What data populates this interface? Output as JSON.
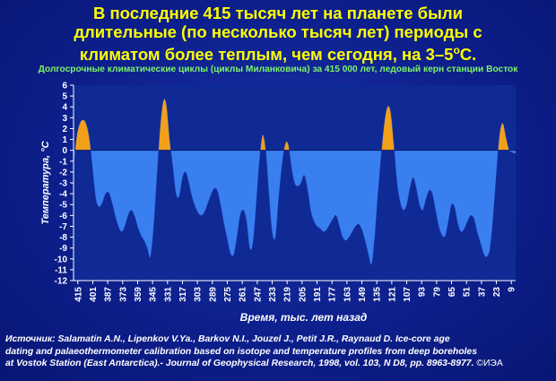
{
  "title": {
    "line1": "В последние 415 тысяч лет на планете были",
    "line2": "длительные (по несколько тысяч лет) периоды с",
    "line3_prefix": "климатом более теплым, чем сегодня, на 3–5",
    "line3_sup": "о",
    "line3_suffix": "С."
  },
  "subtitle": "Долгосрочные климатические циклы (циклы Миланковича) за 415 000 лет, ледовый керн станции Восток",
  "source": {
    "line1": "Источник: Salamatin A.N., Lipenkov V.Ya., Barkov N.I., Jouzel J., Petit J.R., Raynaud D. Ice-core age",
    "line2": "dating and palaeothermometer calibration based on isotope and temperature profiles from deep boreholes",
    "line3": "at Vostok  Station (East Antarctica).- Journal of Geophysical Research, 1998, vol. 103, N D8, pp. 8963-8977.",
    "copyright": "©ИЭА"
  },
  "colors": {
    "warm": "#f2a01a",
    "cold": "#3a7ff0",
    "plot_bg": "#0f2a94",
    "axis_text": "#ffffff",
    "grid": "#4a63c8"
  },
  "chart_data": {
    "type": "area",
    "xlabel": "Время, тыс. лет назад",
    "ylabel": "Температура, °С",
    "ylim": [
      -12,
      6
    ],
    "xlim": [
      419,
      5
    ],
    "y_ticks": [
      6,
      5,
      4,
      3,
      2,
      1,
      0,
      -1,
      -2,
      -3,
      -4,
      -5,
      -6,
      -7,
      -8,
      -9,
      -10,
      -11,
      -12
    ],
    "x_ticks": [
      415,
      401,
      387,
      373,
      359,
      345,
      331,
      317,
      303,
      289,
      275,
      261,
      247,
      233,
      219,
      205,
      191,
      177,
      163,
      149,
      135,
      121,
      107,
      93,
      79,
      65,
      51,
      37,
      23,
      9
    ],
    "baseline": 0,
    "grid": false,
    "legend": "none",
    "x": [
      419,
      416,
      413,
      410,
      407,
      404,
      401,
      398,
      395,
      392,
      389,
      386,
      383,
      380,
      377,
      374,
      371,
      368,
      365,
      362,
      359,
      356,
      353,
      350,
      347,
      344,
      341,
      338,
      335,
      332,
      329,
      326,
      323,
      320,
      317,
      314,
      311,
      308,
      305,
      302,
      299,
      296,
      293,
      290,
      287,
      284,
      281,
      278,
      275,
      272,
      269,
      266,
      263,
      260,
      257,
      254,
      251,
      248,
      245,
      242,
      239,
      236,
      233,
      230,
      227,
      224,
      221,
      218,
      215,
      212,
      209,
      206,
      203,
      200,
      197,
      194,
      191,
      188,
      185,
      182,
      179,
      176,
      173,
      170,
      167,
      164,
      161,
      158,
      155,
      152,
      149,
      146,
      143,
      140,
      137,
      134,
      131,
      128,
      125,
      122,
      119,
      116,
      113,
      110,
      107,
      104,
      101,
      98,
      95,
      92,
      89,
      86,
      83,
      80,
      77,
      74,
      71,
      68,
      65,
      62,
      59,
      56,
      53,
      50,
      47,
      44,
      41,
      38,
      35,
      32,
      29,
      26,
      23,
      20,
      17,
      14,
      11,
      8,
      5
    ],
    "values": [
      -1.5,
      1.3,
      2.5,
      2.8,
      2.4,
      1.0,
      -1.8,
      -4.5,
      -5.2,
      -4.8,
      -4.0,
      -3.9,
      -4.8,
      -6.0,
      -7.0,
      -7.5,
      -7.0,
      -6.0,
      -5.5,
      -6.0,
      -7.0,
      -7.8,
      -8.3,
      -9.0,
      -9.8,
      -7.0,
      -2.5,
      2.0,
      4.5,
      4.2,
      1.0,
      -1.5,
      -4.0,
      -4.2,
      -2.5,
      -2.0,
      -3.0,
      -4.3,
      -5.2,
      -5.8,
      -6.0,
      -5.6,
      -4.8,
      -4.0,
      -3.5,
      -3.8,
      -5.2,
      -6.8,
      -8.2,
      -9.5,
      -9.6,
      -8.0,
      -6.0,
      -5.5,
      -6.5,
      -9.0,
      -8.5,
      -5.0,
      -1.0,
      1.4,
      0.0,
      -4.0,
      -7.5,
      -8.0,
      -4.5,
      -1.5,
      0.5,
      0.6,
      -1.5,
      -3.0,
      -3.3,
      -3.0,
      -2.3,
      -3.5,
      -5.5,
      -6.5,
      -7.0,
      -7.2,
      -7.5,
      -7.3,
      -6.8,
      -6.3,
      -6.0,
      -7.0,
      -8.0,
      -8.3,
      -8.0,
      -7.5,
      -7.0,
      -6.8,
      -7.3,
      -8.3,
      -9.5,
      -10.5,
      -8.0,
      -4.0,
      -0.5,
      2.5,
      4.0,
      3.5,
      0.5,
      -3.0,
      -4.8,
      -5.5,
      -5.0,
      -3.5,
      -2.5,
      -3.5,
      -5.0,
      -5.5,
      -4.5,
      -3.7,
      -4.0,
      -5.5,
      -7.0,
      -7.8,
      -7.9,
      -6.5,
      -5.0,
      -5.3,
      -6.8,
      -7.5,
      -7.2,
      -6.5,
      -6.0,
      -6.3,
      -7.5,
      -8.5,
      -9.5,
      -9.8,
      -9.0,
      -6.0,
      -2.0,
      1.5,
      2.5,
      1.2,
      0.0,
      -0.2,
      -0.3
    ]
  }
}
